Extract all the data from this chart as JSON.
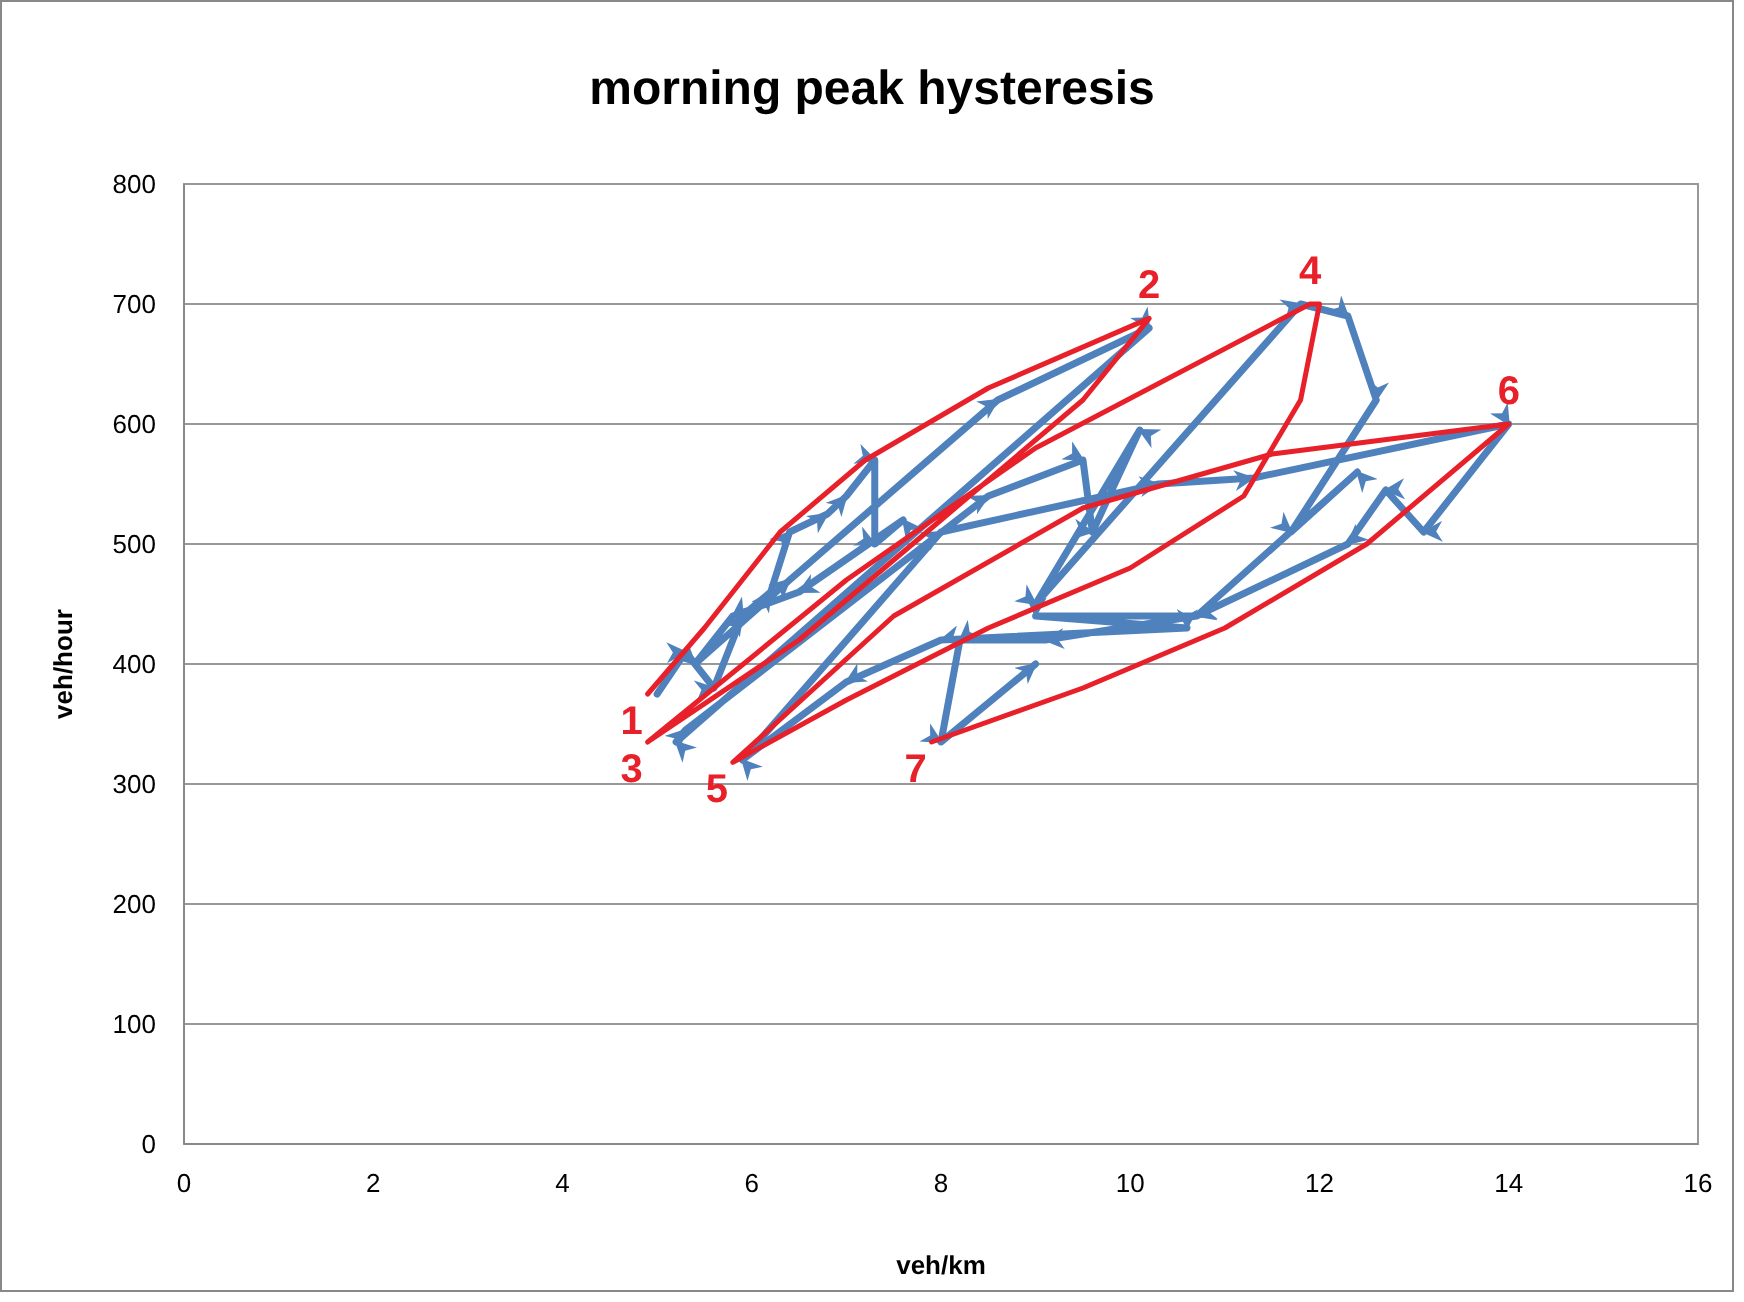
{
  "chart_data": {
    "type": "line",
    "title": "morning peak hysteresis",
    "xlabel": "veh/km",
    "ylabel": "veh/hour",
    "xlim": [
      0,
      16
    ],
    "xticks": [
      0,
      2,
      4,
      6,
      8,
      10,
      12,
      14,
      16
    ],
    "ylim": [
      0,
      800
    ],
    "yticks": [
      0,
      100,
      200,
      300,
      400,
      500,
      600,
      700,
      800
    ],
    "grid": "y",
    "marker": "none",
    "series": [
      {
        "color": "#4f81bd",
        "x": [
          5.0,
          5.3,
          5.6,
          5.9,
          6.2,
          6.4,
          6.8,
          7.0,
          7.3,
          7.3,
          7.6,
          6.5,
          5.8,
          5.4,
          6.4,
          8.6,
          10.2,
          5.2,
          5.3,
          8.5,
          9.5,
          9.6,
          10.1,
          9.0,
          11.8,
          12.3,
          12.6,
          11.7,
          12.4,
          10.7,
          9.0,
          10.6,
          8.0,
          7.0,
          5.9,
          8.0,
          10.3,
          11.3,
          14.0,
          13.1,
          12.7,
          12.3,
          10.7,
          9.1,
          8.2,
          8.0,
          9.0
        ],
        "values": [
          375,
          410,
          380,
          440,
          460,
          510,
          525,
          540,
          570,
          500,
          520,
          460,
          440,
          400,
          470,
          620,
          680,
          335,
          345,
          540,
          570,
          510,
          595,
          450,
          700,
          690,
          620,
          510,
          560,
          440,
          440,
          430,
          420,
          385,
          320,
          510,
          550,
          555,
          600,
          510,
          545,
          500,
          440,
          420,
          420,
          335,
          400
        ]
      },
      {
        "color": "#e8202a",
        "x": [
          4.9,
          5.5,
          6.3,
          7.2,
          8.5,
          10.2,
          9.5,
          8.0,
          6.5,
          4.9,
          7.0,
          9.0,
          11.9,
          12.0,
          11.8,
          11.2,
          10.0,
          8.5,
          7.0,
          5.8,
          7.5,
          9.5,
          11.5,
          14.0,
          12.5,
          11.0,
          9.5,
          7.9
        ],
        "values": [
          375,
          430,
          510,
          570,
          630,
          688,
          620,
          520,
          420,
          335,
          470,
          580,
          700,
          700,
          620,
          540,
          480,
          430,
          370,
          318,
          440,
          530,
          575,
          600,
          500,
          430,
          380,
          335
        ]
      }
    ],
    "annotations": [
      {
        "text": "1",
        "x": 4.9,
        "y": 375
      },
      {
        "text": "2",
        "x": 10.2,
        "y": 688
      },
      {
        "text": "3",
        "x": 4.9,
        "y": 335
      },
      {
        "text": "4",
        "x": 11.9,
        "y": 700
      },
      {
        "text": "5",
        "x": 5.8,
        "y": 318
      },
      {
        "text": "6",
        "x": 14.0,
        "y": 600
      },
      {
        "text": "7",
        "x": 7.9,
        "y": 335
      }
    ]
  }
}
